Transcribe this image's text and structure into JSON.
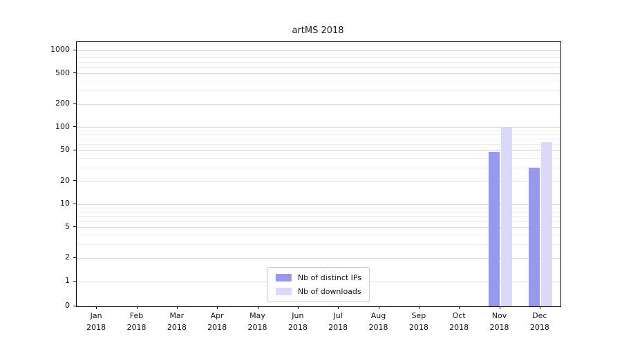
{
  "chart_data": {
    "type": "bar",
    "title": "artMS 2018",
    "scale": "symlog",
    "grid": "horizontal",
    "legend_position": "bottom-center-inside",
    "categories": [
      "Jan",
      "Feb",
      "Mar",
      "Apr",
      "May",
      "Jun",
      "Jul",
      "Aug",
      "Sep",
      "Oct",
      "Nov",
      "Dec"
    ],
    "tick_year": "2018",
    "y_ticks": [
      0,
      1,
      2,
      5,
      10,
      20,
      50,
      100,
      200,
      500,
      1000
    ],
    "ylim": [
      0,
      1300
    ],
    "xlabel": "",
    "ylabel": "",
    "series": [
      {
        "name": "Nb of distinct IPs",
        "color": "#9898ec",
        "values": [
          0,
          0,
          0,
          0,
          0,
          0,
          0,
          0,
          0,
          0,
          48,
          30
        ]
      },
      {
        "name": "Nb of downloads",
        "color": "#dadaf8",
        "values": [
          0,
          0,
          0,
          0,
          0,
          0,
          0,
          0,
          0,
          0,
          100,
          65
        ]
      }
    ]
  },
  "colors": {
    "axis": "#000000",
    "grid_major": "#d9d9d9",
    "grid_minor": "#ededed",
    "background": "#ffffff"
  }
}
